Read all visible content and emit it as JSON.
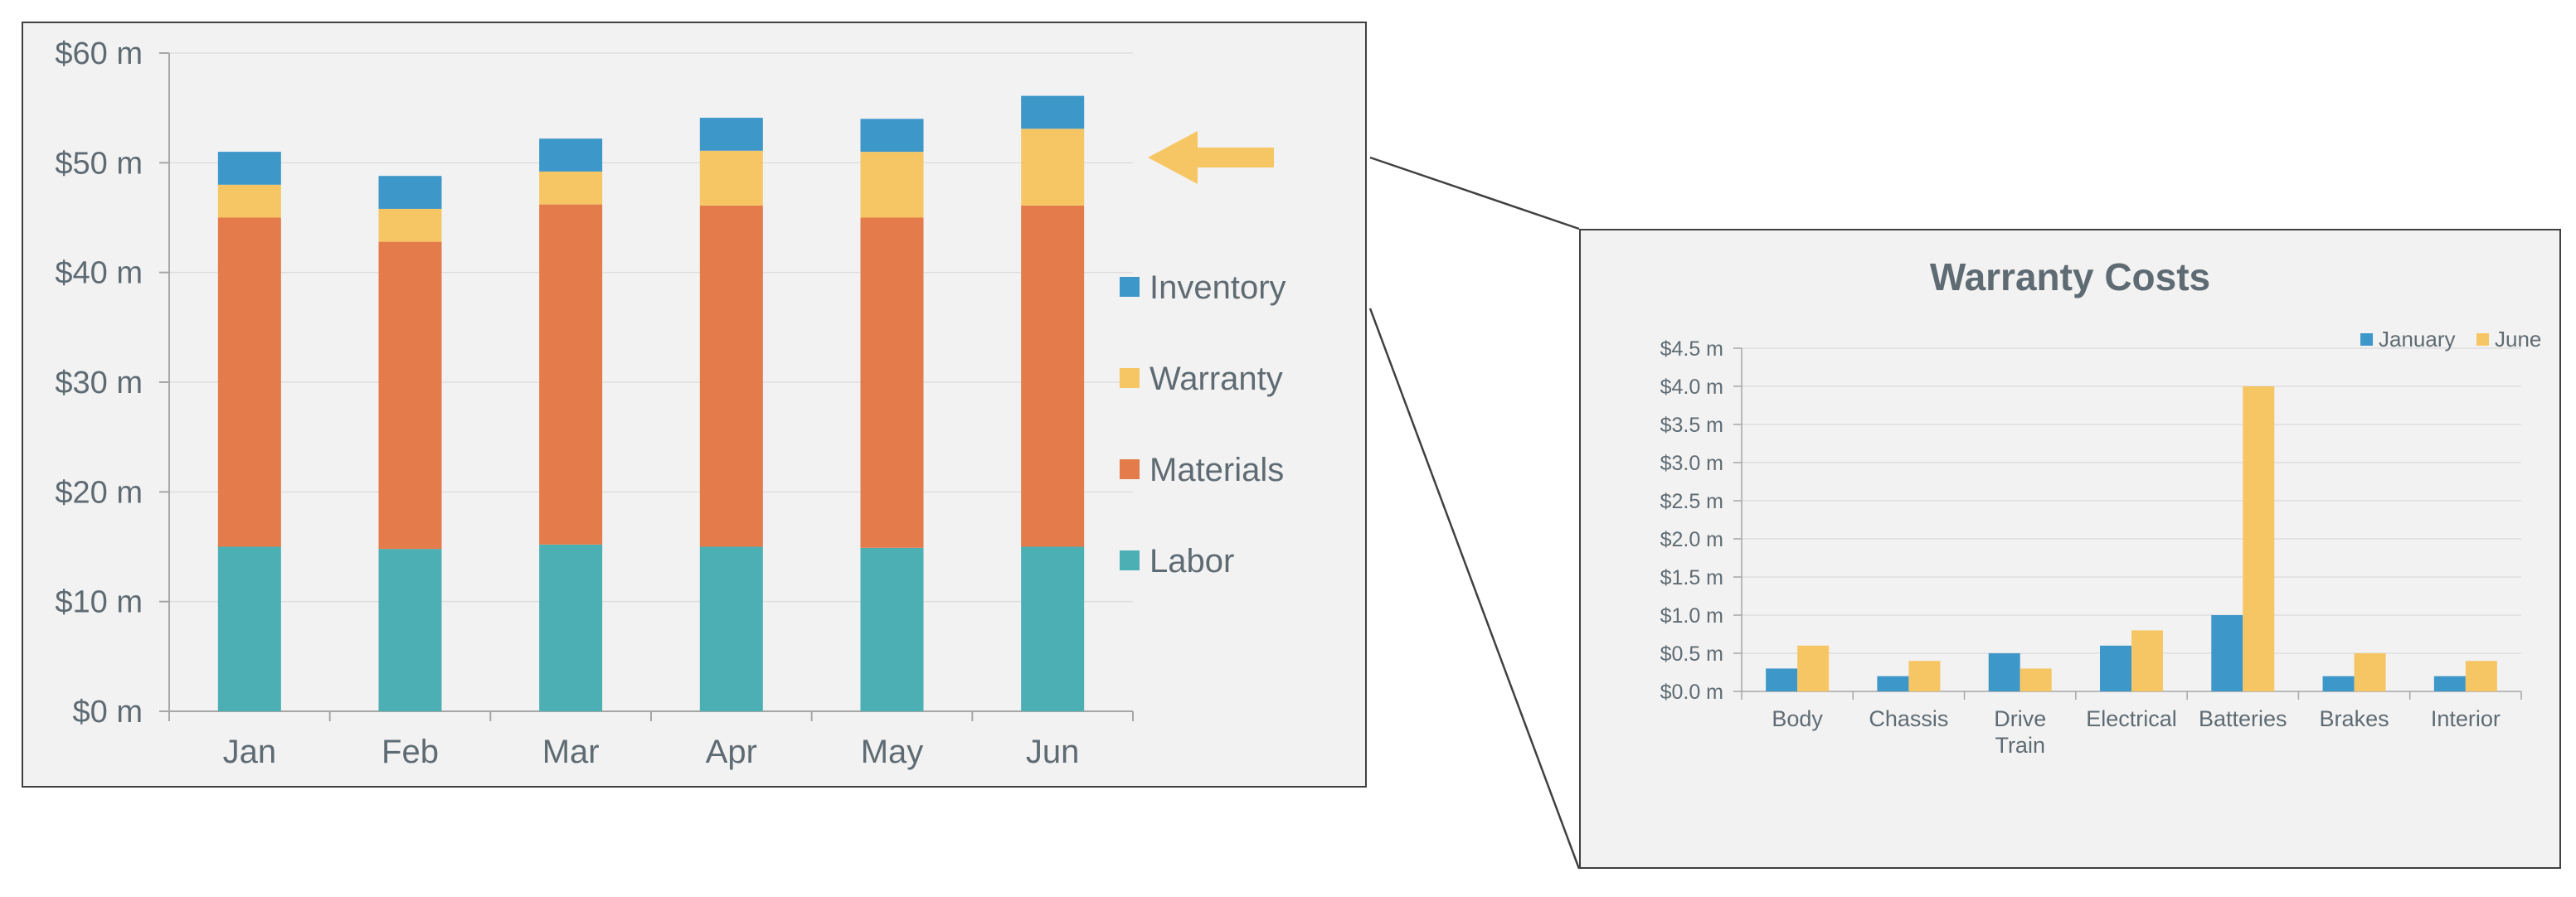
{
  "colors": {
    "inventory": "#3d97c9",
    "warranty": "#f7c664",
    "materials": "#e47b4b",
    "labor": "#4bafb3",
    "january": "#3d97c9",
    "june": "#f7c664",
    "arrow": "#f7c664",
    "text": "#5f6b73",
    "axis": "#a6a6a6",
    "grid": "#dedede"
  },
  "chart_data": [
    {
      "type": "bar",
      "stacked": true,
      "title": "",
      "xlabel": "",
      "ylabel": "",
      "categories": [
        "Jan",
        "Feb",
        "Mar",
        "Apr",
        "May",
        "Jun"
      ],
      "ylim": [
        0,
        60
      ],
      "yticks": [
        0,
        10,
        20,
        30,
        40,
        50,
        60
      ],
      "ytick_labels": [
        "$0 m",
        "$10 m",
        "$20 m",
        "$30 m",
        "$40 m",
        "$50 m",
        "$60 m"
      ],
      "grid": true,
      "legend": "right",
      "legend_order": [
        "Inventory",
        "Warranty",
        "Materials",
        "Labor"
      ],
      "series": [
        {
          "name": "Labor",
          "color_key": "labor",
          "values": [
            15.0,
            14.8,
            15.2,
            15.0,
            14.9,
            15.0
          ]
        },
        {
          "name": "Materials",
          "color_key": "materials",
          "values": [
            30.0,
            28.0,
            31.0,
            31.1,
            30.1,
            31.1
          ]
        },
        {
          "name": "Warranty",
          "color_key": "warranty",
          "values": [
            3.0,
            3.0,
            3.0,
            5.0,
            6.0,
            7.0
          ]
        },
        {
          "name": "Inventory",
          "color_key": "inventory",
          "values": [
            3.0,
            3.0,
            3.0,
            3.0,
            3.0,
            3.0
          ]
        }
      ]
    },
    {
      "type": "bar",
      "title": "Warranty Costs",
      "xlabel": "",
      "ylabel": "",
      "categories": [
        "Body",
        "Chassis",
        "Drive Train",
        "Electrical",
        "Batteries",
        "Brakes",
        "Interior"
      ],
      "ylim": [
        0,
        4.5
      ],
      "yticks": [
        0,
        0.5,
        1.0,
        1.5,
        2.0,
        2.5,
        3.0,
        3.5,
        4.0,
        4.5
      ],
      "ytick_labels": [
        "$0.0 m",
        "$0.5 m",
        "$1.0 m",
        "$1.5 m",
        "$2.0 m",
        "$2.5 m",
        "$3.0 m",
        "$3.5 m",
        "$4.0 m",
        "$4.5 m"
      ],
      "grid": true,
      "legend": "top-right",
      "series": [
        {
          "name": "January",
          "color_key": "january",
          "values": [
            0.3,
            0.2,
            0.5,
            0.6,
            1.0,
            0.2,
            0.2
          ]
        },
        {
          "name": "June",
          "color_key": "june",
          "values": [
            0.6,
            0.4,
            0.3,
            0.8,
            4.0,
            0.5,
            0.4
          ]
        }
      ]
    }
  ]
}
